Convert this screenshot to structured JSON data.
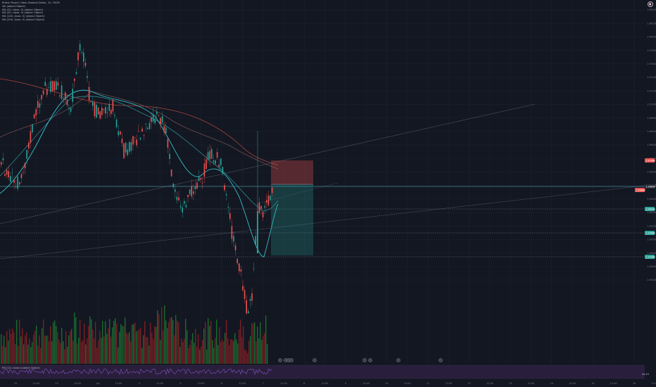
{
  "header": {
    "symbol_title": "British Pound / New Zealand Dollar, 1h, FXCM",
    "indicators": [
      "Vol (object Object)",
      "MA (20, close, 0) (object Object)",
      "MA (50, close, 0) (object Object)",
      "MA (100, close, 0) (object Object)",
      "MA (200, close, 0) (object Object)"
    ]
  },
  "alerts_button": {
    "label": "⏰",
    "icon": "alarm-clock-icon"
  },
  "rsi_panel": {
    "label": "RSI (14, close) (object Object)",
    "value": "40.45"
  },
  "colors": {
    "background": "#131722",
    "up": "#26a69a",
    "down": "#ef5350",
    "vol_up": "#1b6b2e",
    "vol_down": "#7a1f24",
    "ma20": "#33c1c9",
    "ma50": "#2a8a8f",
    "ma100": "#6d4c52",
    "ma200": "#a8453a",
    "grid": "#1e2230",
    "rsi_bg": "#2a1e3d",
    "rsi_line": "#7e57c2"
  },
  "chart_data": {
    "type": "candlestick",
    "price_axis": {
      "min": 1.883,
      "max": 1.8845,
      "ticks": [
        "1.98400",
        "1.98200",
        "1.98000",
        "1.97800",
        "1.97600",
        "1.97400",
        "1.97200",
        "1.97000",
        "1.96800",
        "1.96600",
        "1.96400",
        "1.96200",
        "1.96000",
        "1.95800",
        "1.95600",
        "1.95400",
        "1.95200",
        "1.95000",
        "1.94800",
        "1.94600",
        "1.94400"
      ]
    },
    "price_tags": [
      {
        "text": "1.97480",
        "color": "#ef5350"
      },
      {
        "text": "1.96860",
        "color": "#ef5350"
      },
      {
        "text": "1.96640",
        "color": "#2a2e39"
      },
      {
        "text": "1.96303",
        "color": "#26a69a"
      },
      {
        "text": "1.95660",
        "color": "#26a69a"
      },
      {
        "text": "1.95360",
        "color": "#26a69a"
      }
    ],
    "time_ticks": [
      "15",
      "12:00",
      "25",
      "12:00",
      "Jan",
      "12:00",
      "3",
      "12:00",
      "5",
      "12:00",
      "6",
      "12:00",
      "7",
      "12:00",
      "8",
      "12:00",
      "9",
      "12:00",
      "10",
      "12:00",
      "11",
      "12:00",
      "12",
      "12:00",
      "13",
      "12:00",
      "14",
      "12:00",
      "15",
      "12:00",
      "16",
      "12:00"
    ],
    "events": [
      "event",
      "event",
      "event",
      "event",
      "event",
      "event",
      "event",
      "event"
    ]
  }
}
